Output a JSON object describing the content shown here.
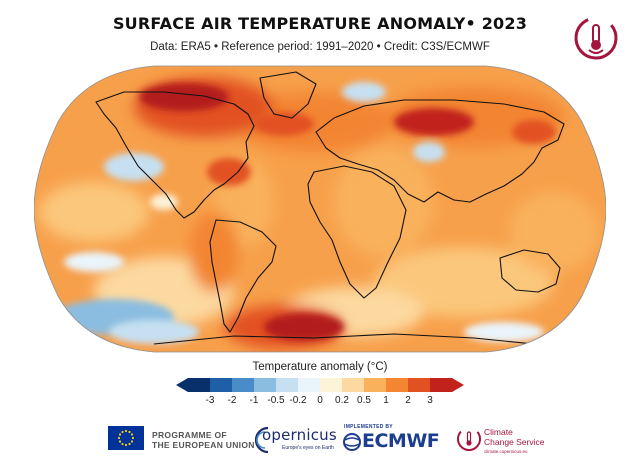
{
  "header": {
    "title": "SURFACE AIR TEMPERATURE ANOMALY• 2023",
    "subtitle": "Data: ERA5 • Reference period: 1991–2020 • Credit: C3S/ECMWF"
  },
  "map": {
    "projection": "Robinson",
    "variable": "surface air temperature anomaly",
    "dominant_anomaly": "positive"
  },
  "legend": {
    "title": "Temperature anomaly (°C)",
    "ticks": [
      "-3",
      "-2",
      "-1",
      "-0.5",
      "-0.2",
      "0",
      "0.2",
      "0.5",
      "1",
      "2",
      "3"
    ],
    "bins": [
      "#08306b",
      "#1f5fa8",
      "#4a8cc7",
      "#8bbde0",
      "#c6e0f2",
      "#eaf4fb",
      "#fdf3d8",
      "#fcd9a0",
      "#f9b15c",
      "#f38533",
      "#e25121",
      "#c1221b"
    ]
  },
  "logos": {
    "corner": "c3s-thermometer-logo",
    "eu_line1": "PROGRAMME OF",
    "eu_line2": "THE EUROPEAN UNION",
    "copernicus": "opernicus",
    "copernicus_tagline": "Europe's eyes on Earth",
    "ecmwf_implemented": "IMPLEMENTED BY",
    "ecmwf": "ECMWF",
    "c3s_line1": "Climate",
    "c3s_line2": "Change Service",
    "c3s_tagline": "climate.copernicus.eu"
  },
  "colors": {
    "ocean_warm": "#f7a04b",
    "warm_strong": "#e0521f",
    "warm_extreme": "#b31f1a",
    "cool": "#9cc6e6",
    "coast": "#111111",
    "brand_c3s": "#a4153e",
    "brand_ecmwf": "#1d3d8f"
  }
}
